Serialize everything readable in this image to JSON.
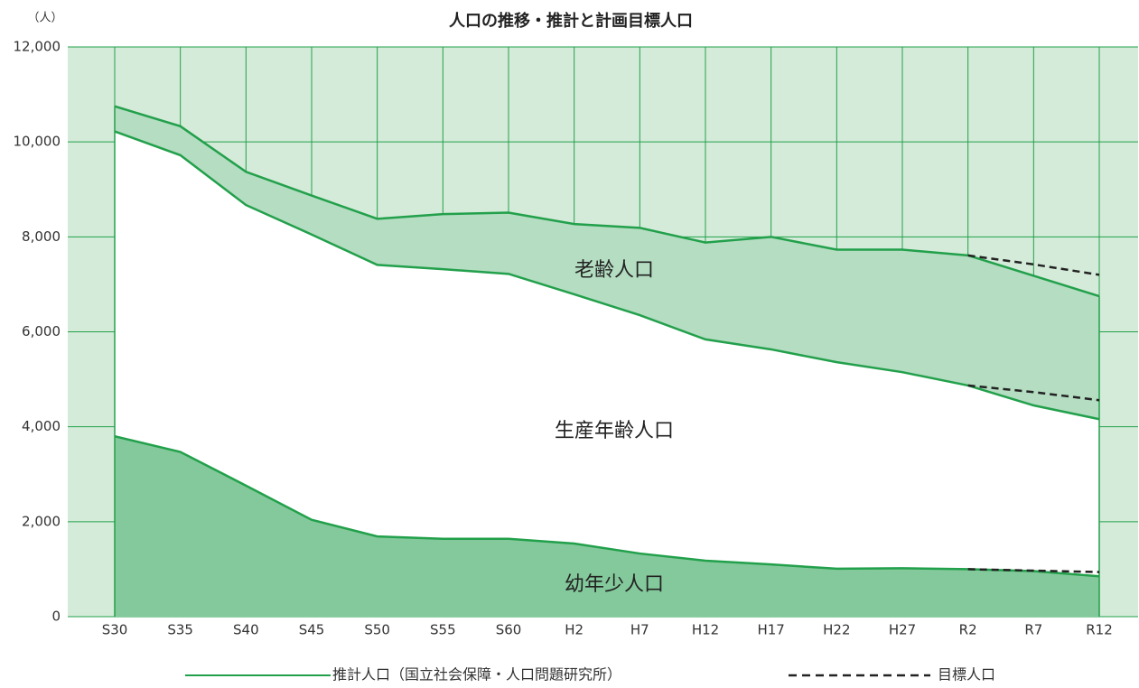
{
  "chart_data": {
    "type": "stacked_area",
    "title": "人口の推移・推計と計画目標人口",
    "y_unit_label": "（人）",
    "categories": [
      "S30",
      "S35",
      "S40",
      "S45",
      "S50",
      "S55",
      "S60",
      "H2",
      "H7",
      "H12",
      "H17",
      "H22",
      "H27",
      "R2",
      "R7",
      "R12"
    ],
    "series": [
      {
        "name": "幼年少人口",
        "color": "#84c99b",
        "values": [
          3800,
          3470,
          2760,
          2040,
          1690,
          1640,
          1640,
          1540,
          1330,
          1180,
          1100,
          1010,
          1020,
          1000,
          960,
          850
        ],
        "target_values": [
          null,
          null,
          null,
          null,
          null,
          null,
          null,
          null,
          null,
          null,
          null,
          null,
          null,
          1000,
          970,
          940
        ]
      },
      {
        "name": "生産年齢人口",
        "color": "#ffffff",
        "values": [
          6420,
          6250,
          5910,
          6010,
          5720,
          5680,
          5580,
          5250,
          5020,
          4660,
          4530,
          4350,
          4130,
          3870,
          3490,
          3310
        ],
        "target_values": [
          null,
          null,
          null,
          null,
          null,
          null,
          null,
          null,
          null,
          null,
          null,
          null,
          null,
          3870,
          3760,
          3620
        ]
      },
      {
        "name": "老齢人口",
        "color": "#b4ddc1",
        "values": [
          530,
          610,
          700,
          820,
          970,
          1160,
          1290,
          1480,
          1840,
          2040,
          2370,
          2370,
          2580,
          2740,
          2730,
          2590
        ],
        "target_values": [
          null,
          null,
          null,
          null,
          null,
          null,
          null,
          null,
          null,
          null,
          null,
          null,
          null,
          2740,
          2690,
          2640
        ]
      }
    ],
    "line_color": "#22a04b",
    "target_color": "#222222",
    "background_color": "#d5ebd9",
    "estimate_legend": "推計人口（国立社会保障・人口問題研究所）",
    "target_legend": "目標人口",
    "ylim": [
      0,
      12000
    ],
    "yticks": [
      0,
      {
        "value": 2000,
        "label": "2,000"
      },
      {
        "value": 4000,
        "label": "4,000"
      },
      {
        "value": 6000,
        "label": "6,000"
      },
      {
        "value": 8000,
        "label": "8,000"
      },
      {
        "value": 10000,
        "label": "10,000"
      },
      {
        "value": 12000,
        "label": "12,000"
      }
    ],
    "grid": true
  }
}
